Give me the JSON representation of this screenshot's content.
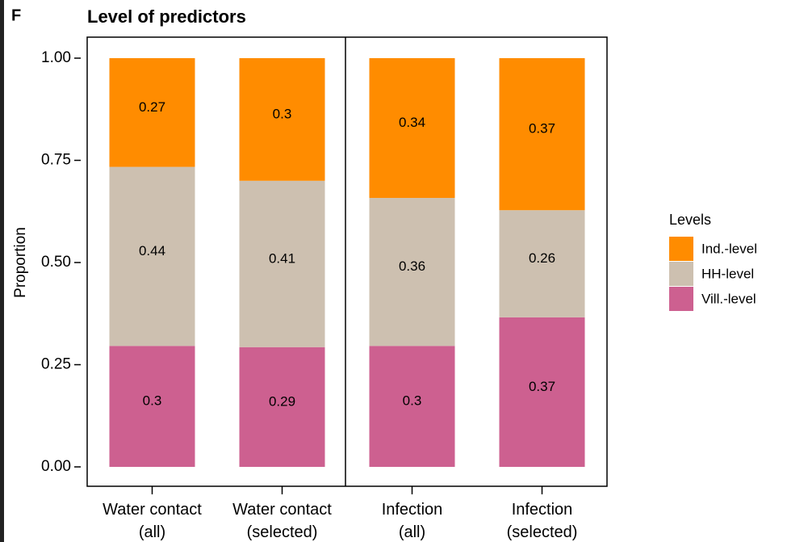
{
  "panel_label": "F",
  "chart_data": {
    "type": "stacked_bar",
    "title": "Level of predictors",
    "ylabel": "Proportion",
    "categories": [
      "Water contact\n(all)",
      "Water contact\n(selected)",
      "Infection\n(all)",
      "Infection\n(selected)"
    ],
    "legend_title": "Levels",
    "series": [
      {
        "name": "Ind.-level",
        "color": "#ff8c00",
        "values": [
          0.266,
          0.3,
          0.342,
          0.372
        ],
        "value_labels": [
          "0.27",
          "0.3",
          "0.34",
          "0.37"
        ]
      },
      {
        "name": "HH-level",
        "color": "#cdc0b0",
        "values": [
          0.438,
          0.407,
          0.362,
          0.262
        ],
        "value_labels": [
          "0.44",
          "0.41",
          "0.36",
          "0.26"
        ]
      },
      {
        "name": "Vill.-level",
        "color": "#cd6090",
        "values": [
          0.296,
          0.293,
          0.296,
          0.366
        ],
        "value_labels": [
          "0.3",
          "0.29",
          "0.3",
          "0.37"
        ]
      }
    ],
    "ylim": [
      0,
      1
    ],
    "yticks": [
      {
        "value": 0,
        "label": "0.00"
      },
      {
        "value": 0.25,
        "label": "0.25"
      },
      {
        "value": 0.5,
        "label": "0.50"
      },
      {
        "value": 0.75,
        "label": "0.75"
      },
      {
        "value": 1,
        "label": "1.00"
      }
    ],
    "legend_position": "right"
  }
}
